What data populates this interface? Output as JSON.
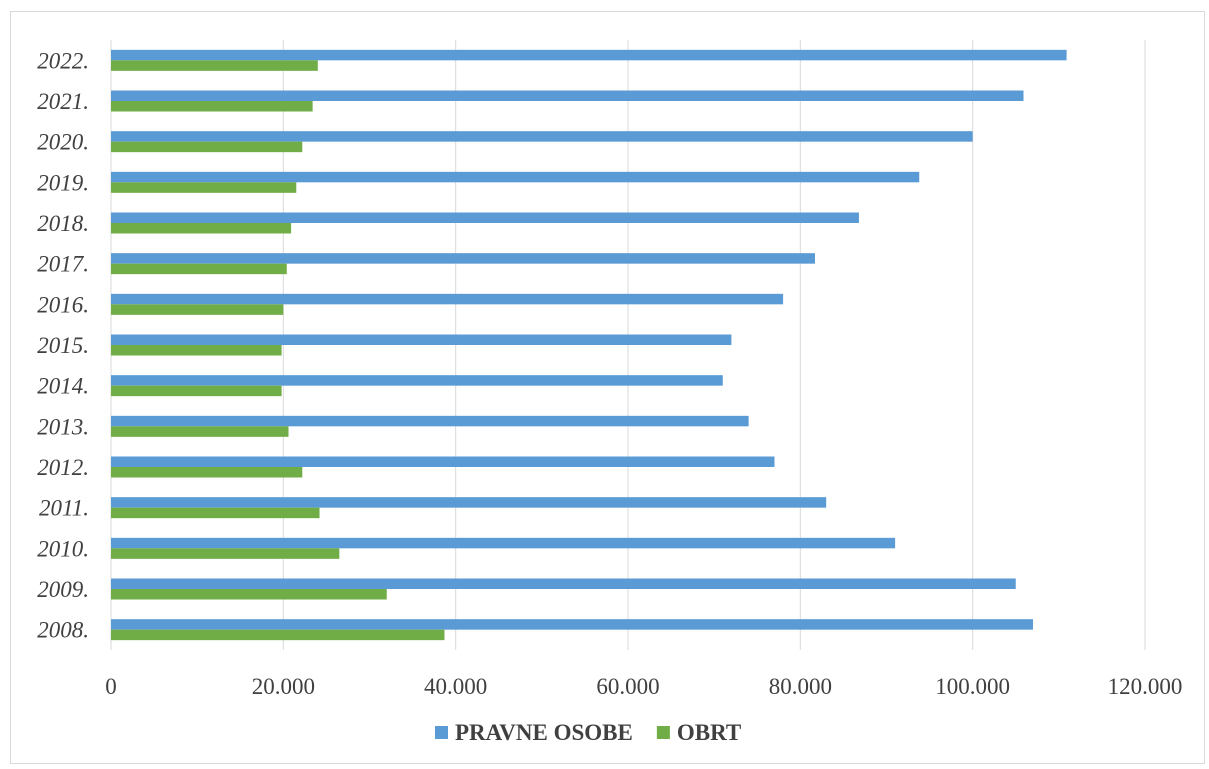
{
  "chart_data": {
    "type": "bar",
    "orientation": "horizontal",
    "categories": [
      "2008.",
      "2009.",
      "2010.",
      "2011.",
      "2012.",
      "2013.",
      "2014.",
      "2015.",
      "2016.",
      "2017.",
      "2018.",
      "2019.",
      "2020.",
      "2021.",
      "2022."
    ],
    "series": [
      {
        "name": "PRAVNE OSOBE",
        "color": "#5b9bd5",
        "values": [
          107000,
          105000,
          91000,
          83000,
          77000,
          74000,
          71000,
          72000,
          78000,
          81700,
          86800,
          93800,
          100000,
          105900,
          110900
        ]
      },
      {
        "name": "OBRT",
        "color": "#70ad47",
        "values": [
          38700,
          32000,
          26500,
          24200,
          22200,
          20600,
          19800,
          19800,
          20000,
          20400,
          20900,
          21500,
          22200,
          23400,
          24000
        ]
      }
    ],
    "x_ticks": [
      "0",
      "20.000",
      "40.000",
      "60.000",
      "80.000",
      "100.000",
      "120.000"
    ],
    "xlim": [
      0,
      120000
    ],
    "grid": "vertical",
    "legend": "bottom",
    "title": "",
    "xlabel": "",
    "ylabel": ""
  }
}
